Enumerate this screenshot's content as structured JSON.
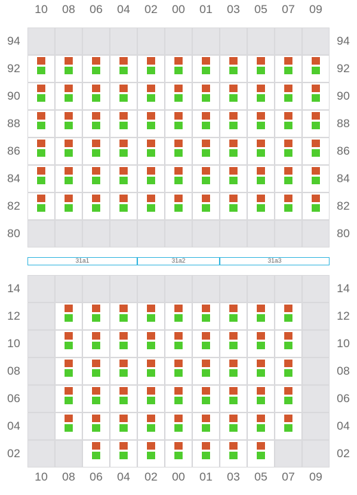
{
  "columns": [
    "10",
    "08",
    "06",
    "04",
    "02",
    "00",
    "01",
    "03",
    "05",
    "07",
    "09"
  ],
  "top_block": {
    "rows": [
      "94",
      "92",
      "90",
      "88",
      "86",
      "84",
      "82",
      "80"
    ],
    "occupied": [
      [
        0,
        0,
        0,
        0,
        0,
        0,
        0,
        0,
        0,
        0,
        0
      ],
      [
        1,
        1,
        1,
        1,
        1,
        1,
        1,
        1,
        1,
        1,
        1
      ],
      [
        1,
        1,
        1,
        1,
        1,
        1,
        1,
        1,
        1,
        1,
        1
      ],
      [
        1,
        1,
        1,
        1,
        1,
        1,
        1,
        1,
        1,
        1,
        1
      ],
      [
        1,
        1,
        1,
        1,
        1,
        1,
        1,
        1,
        1,
        1,
        1
      ],
      [
        1,
        1,
        1,
        1,
        1,
        1,
        1,
        1,
        1,
        1,
        1
      ],
      [
        1,
        1,
        1,
        1,
        1,
        1,
        1,
        1,
        1,
        1,
        1
      ],
      [
        0,
        0,
        0,
        0,
        0,
        0,
        0,
        0,
        0,
        0,
        0
      ]
    ]
  },
  "sections": [
    "31a1",
    "31a2",
    "31a3"
  ],
  "bottom_block": {
    "rows": [
      "14",
      "12",
      "10",
      "08",
      "06",
      "04",
      "02"
    ],
    "occupied": [
      [
        0,
        0,
        0,
        0,
        0,
        0,
        0,
        0,
        0,
        0,
        0
      ],
      [
        0,
        1,
        1,
        1,
        1,
        1,
        1,
        1,
        1,
        1,
        0
      ],
      [
        0,
        1,
        1,
        1,
        1,
        1,
        1,
        1,
        1,
        1,
        0
      ],
      [
        0,
        1,
        1,
        1,
        1,
        1,
        1,
        1,
        1,
        1,
        0
      ],
      [
        0,
        1,
        1,
        1,
        1,
        1,
        1,
        1,
        1,
        1,
        0
      ],
      [
        0,
        1,
        1,
        1,
        1,
        1,
        1,
        1,
        1,
        1,
        0
      ],
      [
        0,
        0,
        1,
        1,
        1,
        1,
        1,
        1,
        1,
        0,
        0
      ]
    ]
  },
  "colors": {
    "marker_top": "#d2572e",
    "marker_bottom": "#4fcc2e",
    "empty_cell": "#e4e4e7",
    "section_border": "#3bb8e0"
  }
}
